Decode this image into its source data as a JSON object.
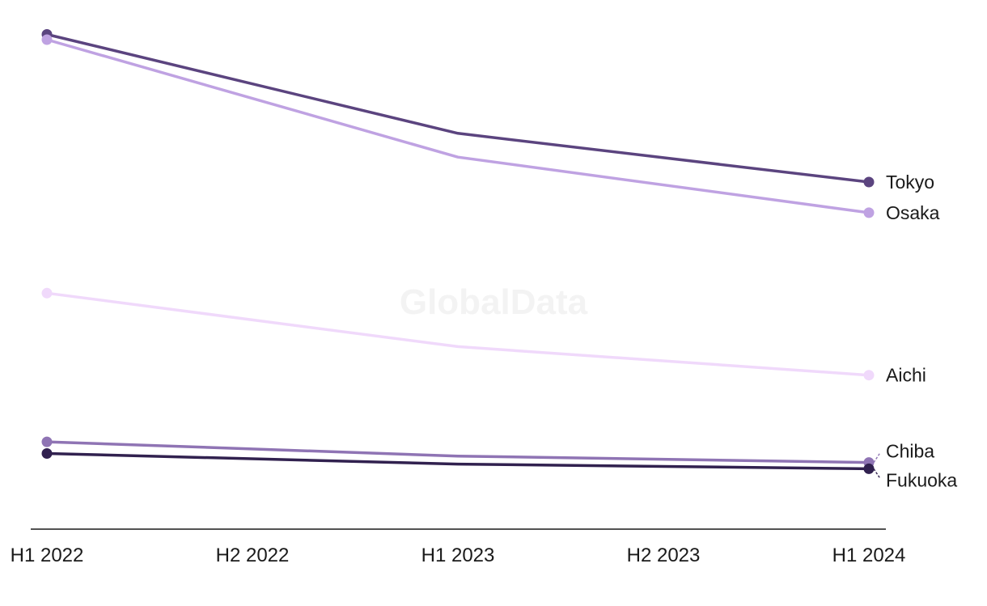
{
  "watermark": "GlobalData",
  "chart_data": {
    "type": "line",
    "x": [
      "H1 2022",
      "H2 2022",
      "H1 2023",
      "H2 2023",
      "H1 2024"
    ],
    "ylim": [
      0,
      100
    ],
    "grid": false,
    "legend": "none (direct labels at line ends)",
    "series": [
      {
        "name": "Tokyo",
        "color": "#5b447f",
        "points": [
          [
            0,
            93.5
          ],
          [
            2,
            74.8
          ],
          [
            4,
            65.6
          ]
        ]
      },
      {
        "name": "Osaka",
        "color": "#bfa2e2",
        "points": [
          [
            0,
            92.5
          ],
          [
            2,
            70.3
          ],
          [
            4,
            59.8
          ]
        ]
      },
      {
        "name": "Aichi",
        "color": "#f0d9fb",
        "points": [
          [
            0,
            44.6
          ],
          [
            2,
            34.5
          ],
          [
            4,
            29.1
          ]
        ]
      },
      {
        "name": "Chiba",
        "color": "#8f74b4",
        "points": [
          [
            0,
            16.5
          ],
          [
            2,
            13.8
          ],
          [
            4,
            12.6
          ]
        ]
      },
      {
        "name": "Fukuoka",
        "color": "#31214f",
        "points": [
          [
            0,
            14.3
          ],
          [
            2,
            12.3
          ],
          [
            4,
            11.4
          ]
        ]
      }
    ]
  }
}
